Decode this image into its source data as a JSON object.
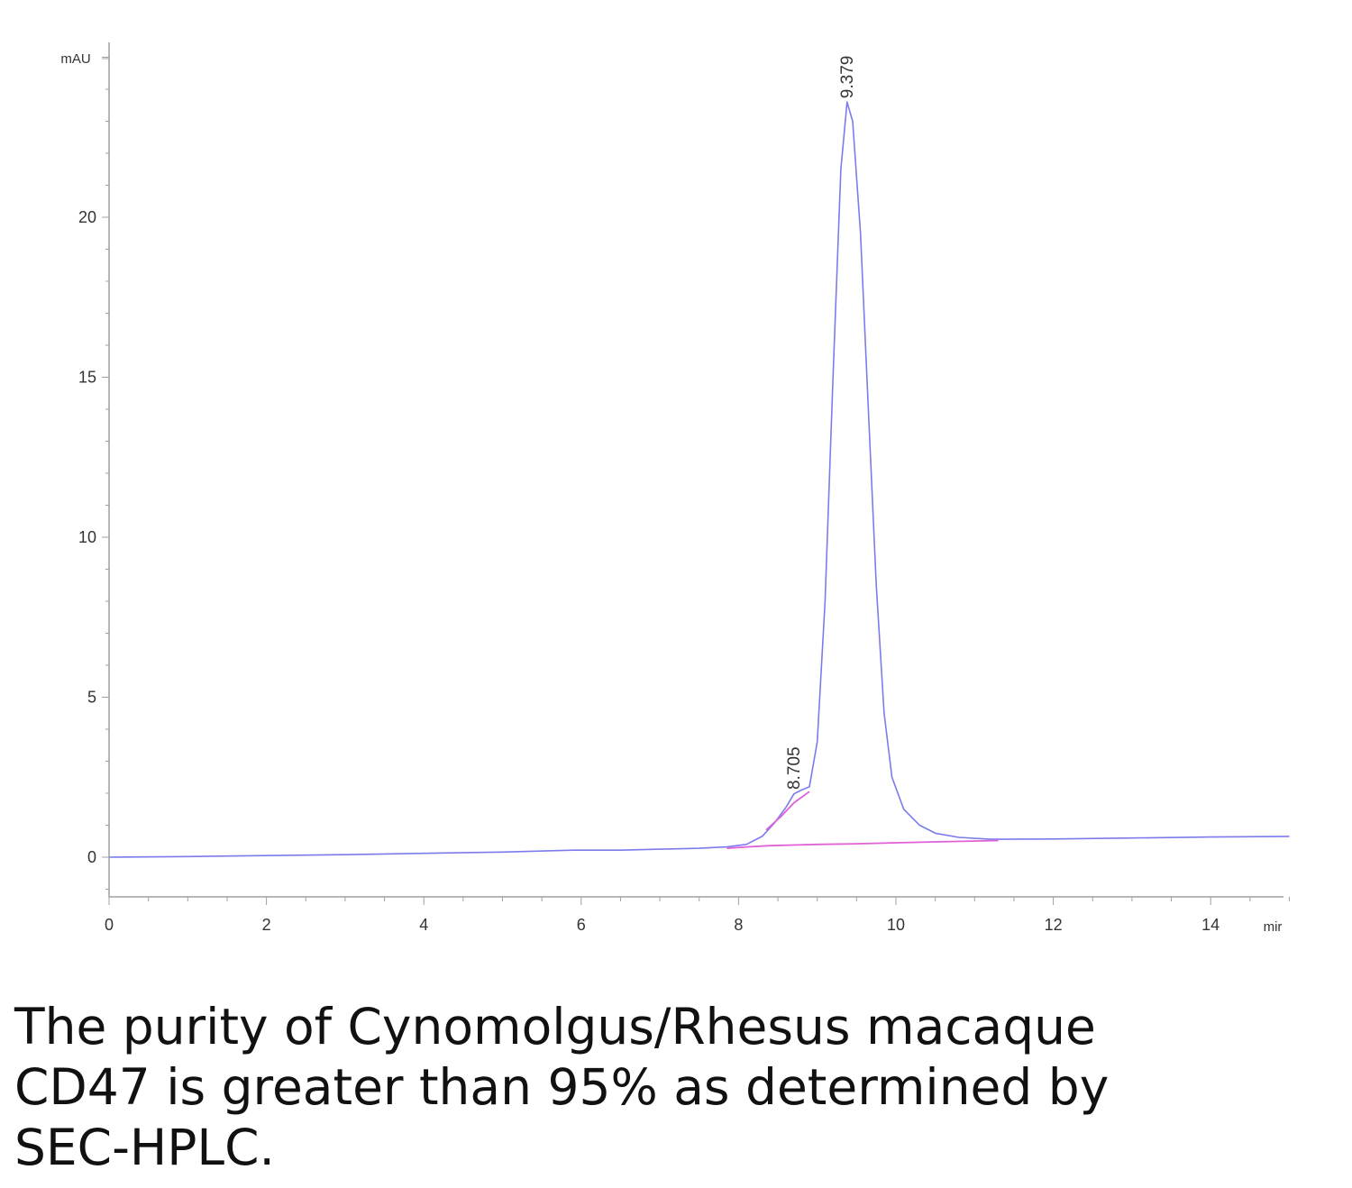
{
  "chart_data": {
    "type": "line",
    "ylabel": "mAU",
    "xlabel": "mir",
    "xlim": [
      0,
      15
    ],
    "ylim": [
      -1.2,
      25.5
    ],
    "x_ticks": [
      "0",
      "2",
      "4",
      "6",
      "8",
      "10",
      "12",
      "14"
    ],
    "y_ticks": [
      "0",
      "5",
      "10",
      "15",
      "20"
    ],
    "grid": false,
    "legend": "none",
    "series": [
      {
        "color": "#7b7bee",
        "points": [
          [
            0,
            0.0
          ],
          [
            1,
            0.02
          ],
          [
            2,
            0.05
          ],
          [
            3,
            0.08
          ],
          [
            4,
            0.12
          ],
          [
            5,
            0.16
          ],
          [
            5.9,
            0.22
          ],
          [
            6.5,
            0.22
          ],
          [
            7,
            0.25
          ],
          [
            7.5,
            0.28
          ],
          [
            7.85,
            0.32
          ],
          [
            8.1,
            0.4
          ],
          [
            8.3,
            0.65
          ],
          [
            8.45,
            1.05
          ],
          [
            8.6,
            1.55
          ],
          [
            8.705,
            1.98
          ],
          [
            8.8,
            2.1
          ],
          [
            8.9,
            2.2
          ],
          [
            9.0,
            3.6
          ],
          [
            9.1,
            8.0
          ],
          [
            9.2,
            15.0
          ],
          [
            9.3,
            21.5
          ],
          [
            9.379,
            23.6
          ],
          [
            9.45,
            23.0
          ],
          [
            9.55,
            19.5
          ],
          [
            9.65,
            14.0
          ],
          [
            9.75,
            8.5
          ],
          [
            9.85,
            4.5
          ],
          [
            9.95,
            2.5
          ],
          [
            10.1,
            1.5
          ],
          [
            10.3,
            1.0
          ],
          [
            10.5,
            0.75
          ],
          [
            10.8,
            0.62
          ],
          [
            11.2,
            0.56
          ],
          [
            12,
            0.57
          ],
          [
            13,
            0.6
          ],
          [
            14,
            0.63
          ],
          [
            15,
            0.65
          ]
        ]
      },
      {
        "color": "#e060d8",
        "points": [
          [
            7.85,
            0.28
          ],
          [
            8.1,
            0.32
          ],
          [
            8.4,
            0.36
          ],
          [
            8.7,
            0.38
          ],
          [
            9.0,
            0.4
          ],
          [
            9.5,
            0.42
          ],
          [
            10.0,
            0.45
          ],
          [
            10.5,
            0.48
          ],
          [
            11.3,
            0.52
          ]
        ]
      },
      {
        "color": "#e060d8",
        "points": [
          [
            8.35,
            0.85
          ],
          [
            8.55,
            1.3
          ],
          [
            8.705,
            1.7
          ],
          [
            8.9,
            2.05
          ]
        ]
      }
    ],
    "peak_labels": [
      {
        "text": "8.705",
        "x": 8.705,
        "y": 2.0
      },
      {
        "text": "9.379",
        "x": 9.379,
        "y": 23.6
      }
    ],
    "colors": {
      "trace": "#7b7bee",
      "baseline": "#e060d8",
      "axis": "#a0a0a0"
    }
  },
  "caption": {
    "line1": "The purity of Cynomolgus/Rhesus macaque",
    "line2": "CD47 is greater than 95% as determined by",
    "line3": "SEC-HPLC."
  }
}
